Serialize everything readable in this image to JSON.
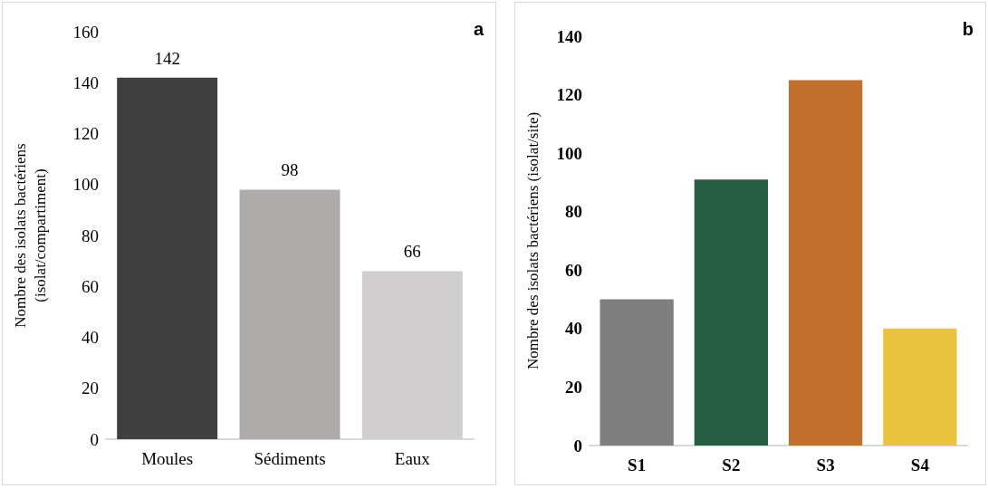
{
  "chart_data": [
    {
      "type": "bar",
      "title": "a",
      "ylabel": "Nombre des isolats bactériens\n(isolat/compartiment)",
      "categories": [
        "Moules",
        "Sédiments",
        "Eaux"
      ],
      "values": [
        142,
        98,
        66
      ],
      "colors": [
        "#404040",
        "#afabab",
        "#d0cece"
      ],
      "ylim": [
        0,
        160
      ],
      "yticks": [
        0,
        20,
        40,
        60,
        80,
        100,
        120,
        140,
        160
      ],
      "data_labels": true,
      "grid": false
    },
    {
      "type": "bar",
      "title": "b",
      "ylabel": "Nombre des isolats bactériens (isolat/site)",
      "categories": [
        "S1",
        "S2",
        "S3",
        "S4"
      ],
      "values": [
        50,
        91,
        125,
        40
      ],
      "colors": [
        "#7f7f7f",
        "#245f43",
        "#c0702c",
        "#e9c33b"
      ],
      "ylim": [
        0,
        140
      ],
      "yticks": [
        0,
        20,
        40,
        60,
        80,
        100,
        120,
        140
      ],
      "grid": false
    }
  ]
}
